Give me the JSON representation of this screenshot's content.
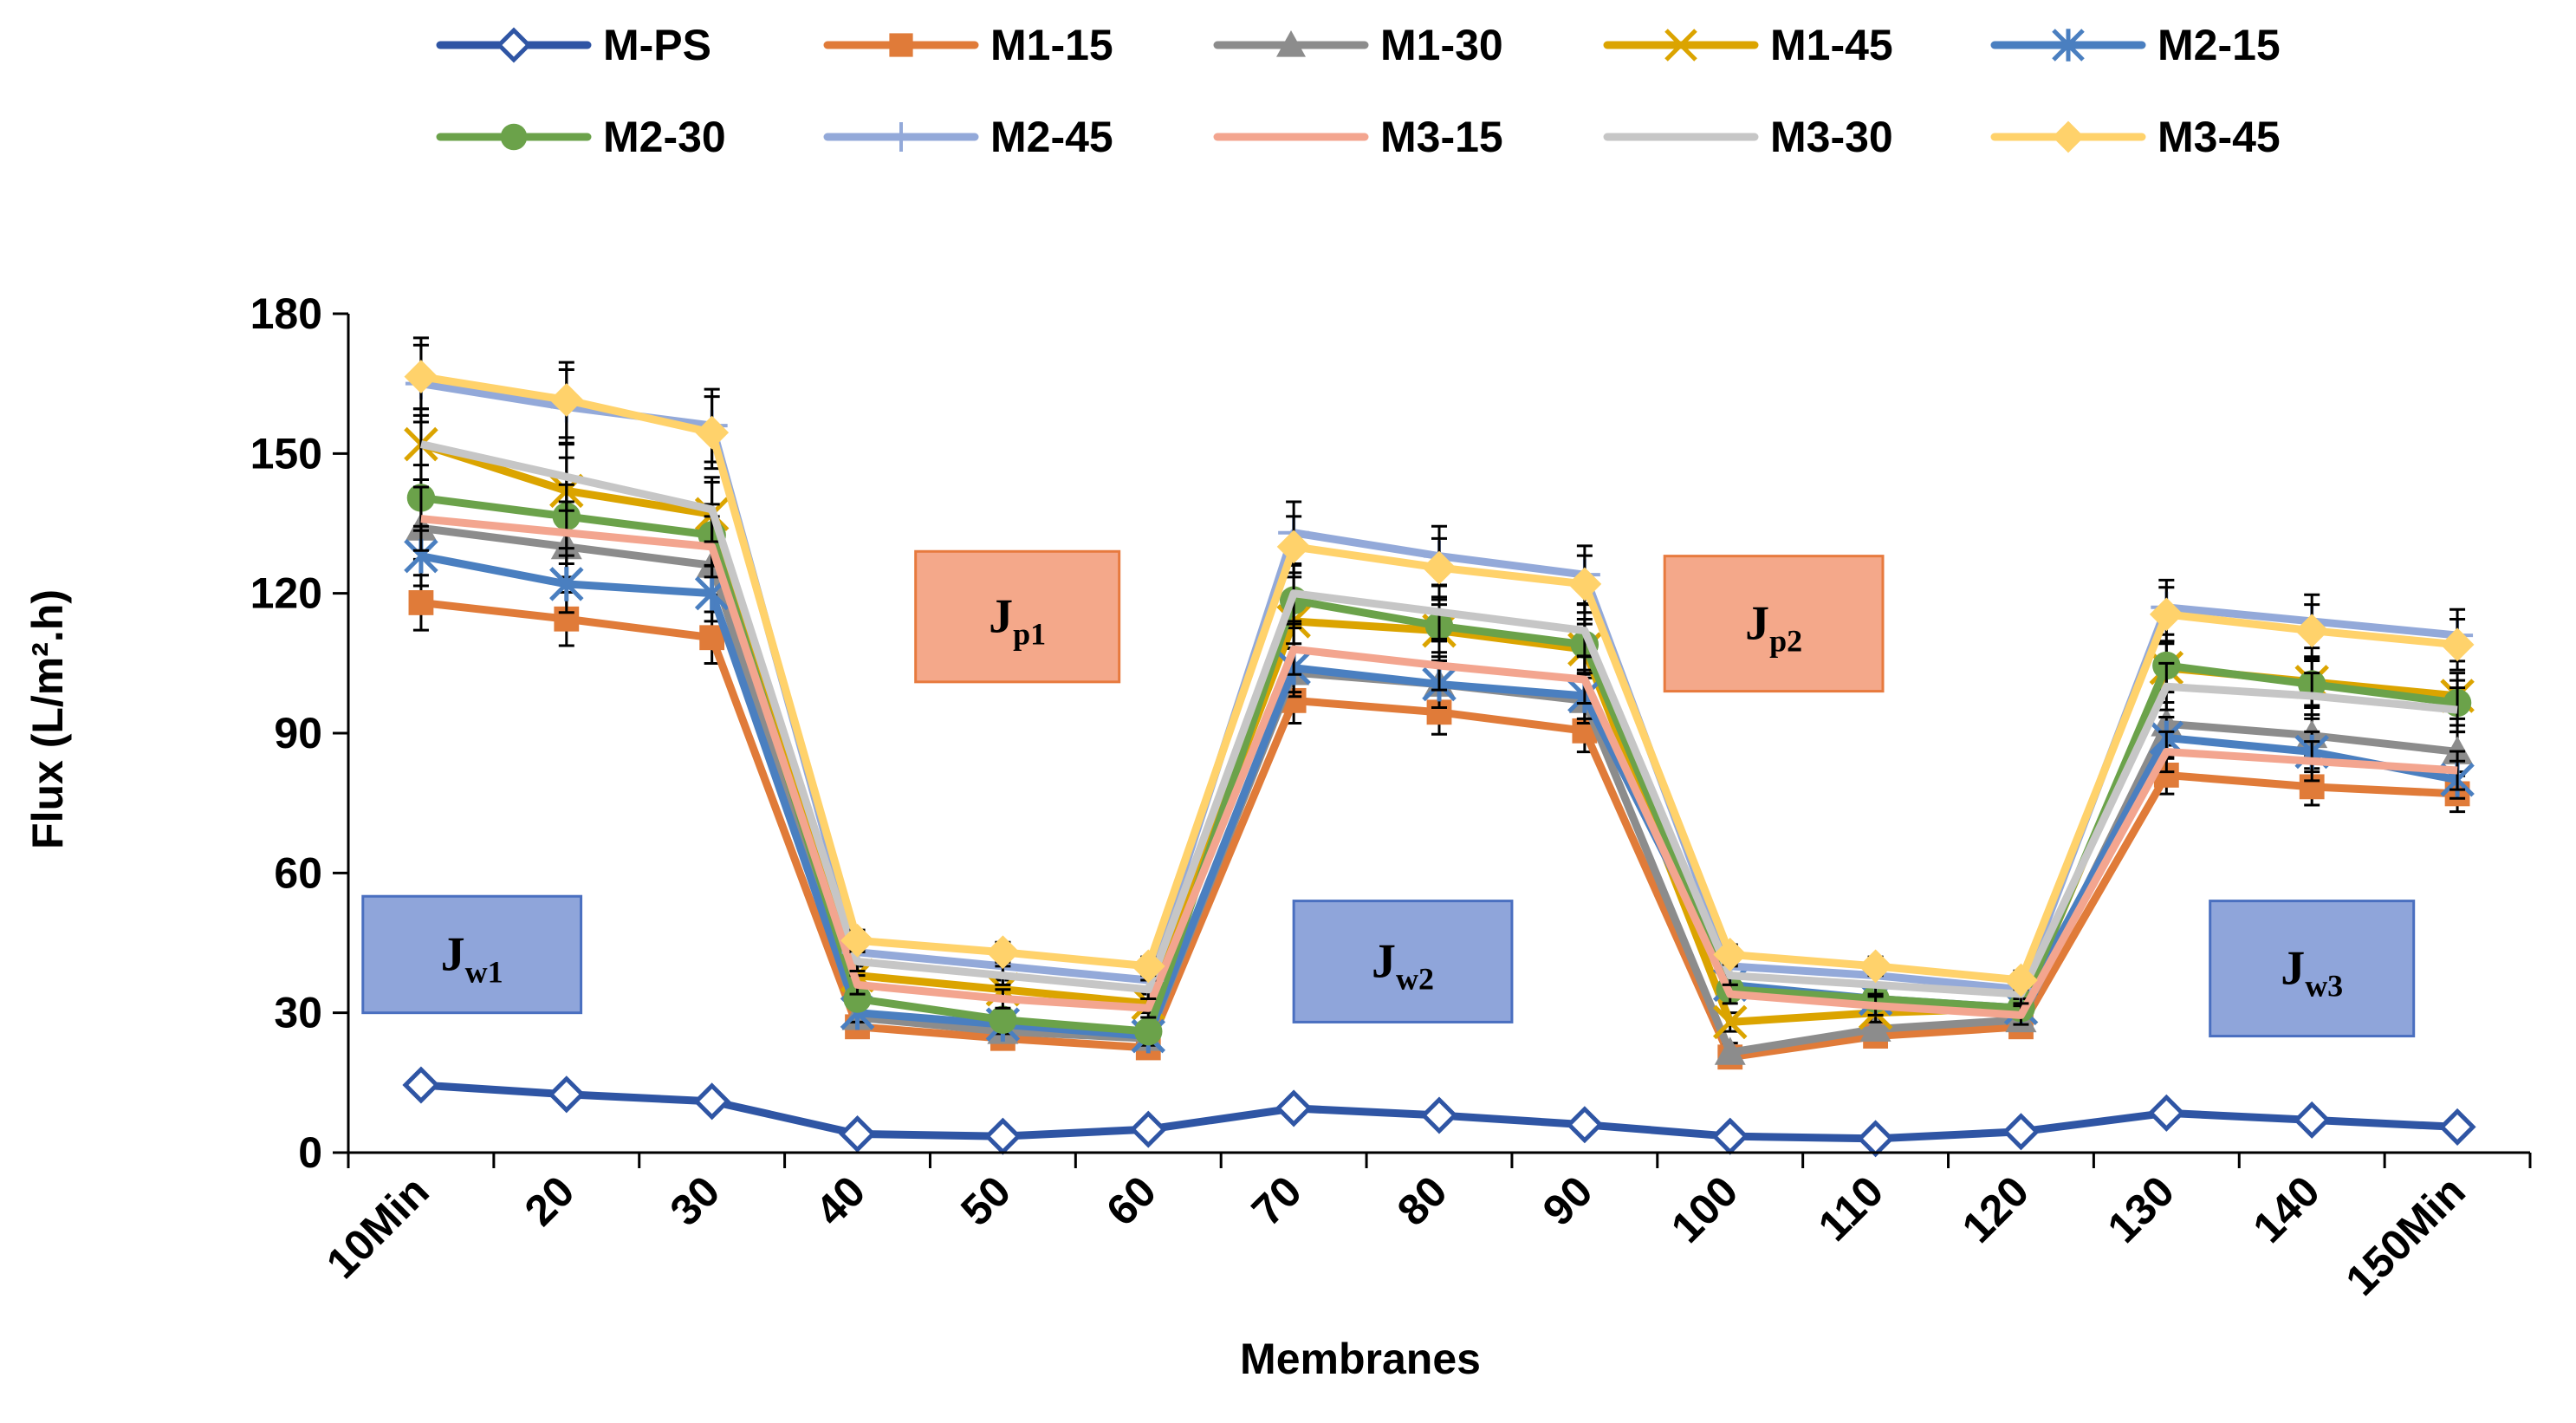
{
  "chart_data": {
    "type": "line",
    "title": "",
    "xlabel": "Membranes",
    "ylabel": "Flux (L/m².h)",
    "ylim": [
      0,
      180
    ],
    "yticks": [
      0,
      30,
      60,
      90,
      120,
      150,
      180
    ],
    "categories": [
      "10Min",
      "20",
      "30",
      "40",
      "50",
      "60",
      "70",
      "80",
      "90",
      "100",
      "110",
      "120",
      "130",
      "140",
      "150Min"
    ],
    "grid": false,
    "legend_position": "top",
    "error_bars": true,
    "series": [
      {
        "name": "M-PS",
        "color": "#2F55A4",
        "marker": "diamond-open",
        "values": [
          14.5,
          12.5,
          11,
          4,
          3.5,
          5,
          9.5,
          8,
          6,
          3.5,
          3,
          4.5,
          8.5,
          7,
          5.5
        ]
      },
      {
        "name": "M1-15",
        "color": "#E07B39",
        "marker": "square",
        "values": [
          118,
          114.5,
          110.5,
          27,
          24.5,
          22.5,
          97,
          94.5,
          90.5,
          20.5,
          25,
          27,
          81,
          78.5,
          77
        ]
      },
      {
        "name": "M1-30",
        "color": "#8C8C8C",
        "marker": "triangle",
        "values": [
          134,
          130,
          126,
          29,
          26,
          24.5,
          103,
          100.5,
          97,
          21.5,
          26.5,
          28.5,
          92,
          89.5,
          86
        ]
      },
      {
        "name": "M1-45",
        "color": "#DBA400",
        "marker": "x",
        "values": [
          152,
          142,
          137,
          38,
          35,
          32,
          114,
          112,
          108,
          28,
          30,
          31,
          104,
          101,
          98
        ]
      },
      {
        "name": "M2-15",
        "color": "#4A7FC0",
        "marker": "asterisk",
        "values": [
          128,
          122,
          120,
          30,
          27.5,
          25,
          104,
          100.5,
          98,
          36,
          33,
          31,
          89,
          86,
          80
        ]
      },
      {
        "name": "M2-30",
        "color": "#6BA24A",
        "marker": "circle",
        "values": [
          140.5,
          136.5,
          132.5,
          33,
          28.5,
          26,
          118.5,
          113,
          109,
          35,
          33,
          31,
          104.5,
          100.5,
          96.5
        ]
      },
      {
        "name": "M2-45",
        "color": "#93A9D9",
        "marker": "plus",
        "values": [
          165,
          160,
          156,
          43,
          40,
          37,
          133,
          128,
          124,
          40,
          38,
          35,
          117,
          114,
          111
        ]
      },
      {
        "name": "M3-15",
        "color": "#F3A58F",
        "marker": "none",
        "values": [
          136,
          133,
          130,
          36,
          33,
          31,
          108,
          104.5,
          101.5,
          34,
          31.5,
          29.5,
          86,
          84,
          82
        ]
      },
      {
        "name": "M3-30",
        "color": "#C6C6C6",
        "marker": "none",
        "values": [
          152,
          145,
          138,
          41,
          38,
          35,
          120,
          116,
          112,
          38,
          36,
          34,
          100,
          98,
          95
        ]
      },
      {
        "name": "M3-45",
        "color": "#FFD26B",
        "marker": "diamond",
        "values": [
          166.5,
          161.5,
          154.5,
          45.5,
          43,
          40,
          130,
          125.5,
          122,
          42.5,
          40,
          37,
          115.5,
          112,
          109
        ]
      }
    ],
    "annotations": [
      {
        "main": "J",
        "sub": "w1",
        "kind": "water",
        "between_categories": [
          0.1,
          1.6
        ],
        "y_range": [
          30,
          55
        ]
      },
      {
        "main": "J",
        "sub": "p1",
        "kind": "protein",
        "between_categories": [
          3.9,
          5.3
        ],
        "y_range": [
          101,
          129
        ]
      },
      {
        "main": "J",
        "sub": "w2",
        "kind": "water",
        "between_categories": [
          6.5,
          8.0
        ],
        "y_range": [
          28,
          54
        ]
      },
      {
        "main": "J",
        "sub": "p2",
        "kind": "protein",
        "between_categories": [
          9.05,
          10.55
        ],
        "y_range": [
          99,
          128
        ]
      },
      {
        "main": "J",
        "sub": "w3",
        "kind": "water",
        "between_categories": [
          12.8,
          14.2
        ],
        "y_range": [
          25,
          54
        ]
      }
    ],
    "annotation_colors": {
      "water_fill": "#8FA5DA",
      "water_stroke": "#4A6FC0",
      "protein_fill": "#F4A88A",
      "protein_stroke": "#E77A3E"
    }
  }
}
